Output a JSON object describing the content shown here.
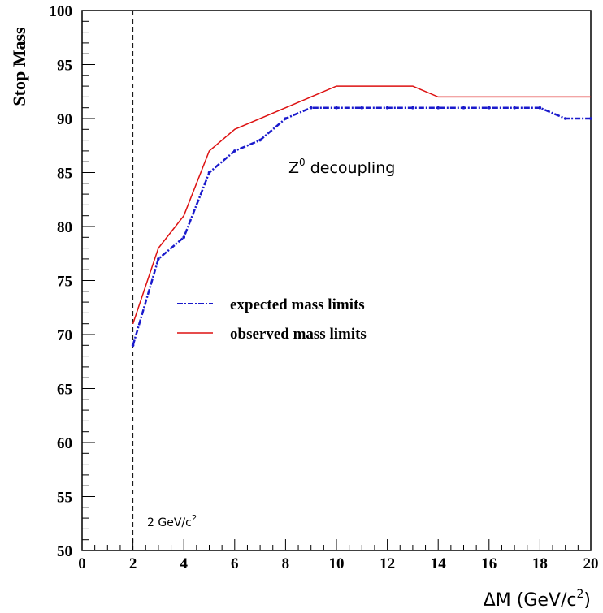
{
  "chart_data": {
    "type": "line",
    "title": "",
    "xlabel_main": "ΔM (GeV/c",
    "xlabel_sup": "2",
    "xlabel_end": ")",
    "ylabel": "Stop Mass",
    "xlim": [
      0,
      20
    ],
    "ylim": [
      50,
      100
    ],
    "x_ticks": [
      0,
      2,
      4,
      6,
      8,
      10,
      12,
      14,
      16,
      18,
      20
    ],
    "y_ticks": [
      50,
      55,
      60,
      65,
      70,
      75,
      80,
      85,
      90,
      95,
      100
    ],
    "grid": false,
    "legend_position": "center-left",
    "series": [
      {
        "name": "expected mass limits",
        "style": "dash-dot",
        "color": "#1a1acc",
        "x": [
          2,
          3,
          4,
          5,
          6,
          7,
          8,
          9,
          10,
          11,
          12,
          13,
          14,
          15,
          16,
          17,
          18,
          19,
          20
        ],
        "values": [
          69,
          77,
          79,
          85,
          87,
          88,
          90,
          91,
          91,
          91,
          91,
          91,
          91,
          91,
          91,
          91,
          91,
          90,
          90
        ]
      },
      {
        "name": "observed mass limits",
        "style": "solid",
        "color": "#dd1111",
        "x": [
          2,
          3,
          4,
          5,
          6,
          10,
          13,
          14,
          20
        ],
        "values": [
          71,
          78,
          81,
          87,
          89,
          93,
          93,
          92,
          92
        ]
      }
    ],
    "vertical_line": {
      "x": 2,
      "style": "dashed",
      "color": "#000000"
    },
    "annotations": {
      "z_decoupling_base": "Z",
      "z_decoupling_sup": "0",
      "z_decoupling_rest": " decoupling",
      "gev_label_main": "2 GeV/c",
      "gev_label_sup": "2"
    }
  }
}
